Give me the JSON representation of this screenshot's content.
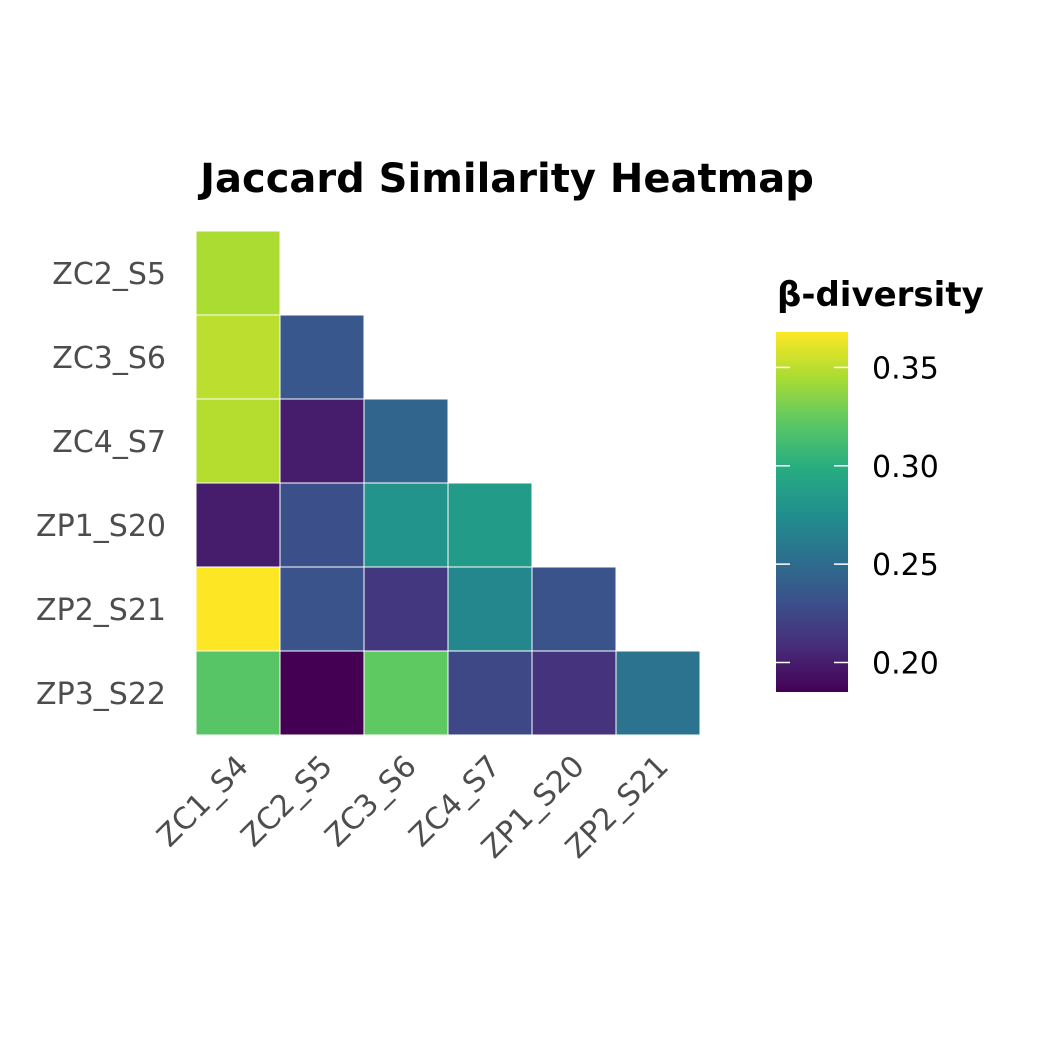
{
  "chart_data": {
    "type": "heatmap",
    "title": "Jaccard Similarity Heatmap",
    "x_categories": [
      "ZC1_S4",
      "ZC2_S5",
      "ZC3_S6",
      "ZC4_S7",
      "ZP1_S20",
      "ZP2_S21"
    ],
    "y_categories": [
      "ZC2_S5",
      "ZC3_S6",
      "ZC4_S7",
      "ZP1_S20",
      "ZP2_S21",
      "ZP3_S22"
    ],
    "values": [
      [
        0.345,
        null,
        null,
        null,
        null,
        null
      ],
      [
        0.35,
        0.235,
        null,
        null,
        null,
        null
      ],
      [
        0.348,
        0.2,
        0.245,
        null,
        null,
        null
      ],
      [
        0.2,
        0.23,
        0.28,
        0.285,
        null,
        null
      ],
      [
        0.368,
        0.232,
        0.215,
        0.27,
        0.232,
        null
      ],
      [
        0.32,
        0.185,
        0.323,
        0.225,
        0.212,
        0.255
      ]
    ],
    "legend": {
      "title": "β-diversity",
      "position": "right",
      "ticks": [
        0.2,
        0.25,
        0.3,
        0.35
      ],
      "tick_labels": [
        "0.20",
        "0.25",
        "0.30",
        "0.35"
      ],
      "range": [
        0.185,
        0.368
      ]
    },
    "colormap": "viridis",
    "colors": [
      "#440154",
      "#472c7a",
      "#3b518b",
      "#2c718e",
      "#21908d",
      "#27ad81",
      "#5cc863",
      "#aadc32",
      "#fde725"
    ],
    "cell_border_color": "#ffffff"
  }
}
